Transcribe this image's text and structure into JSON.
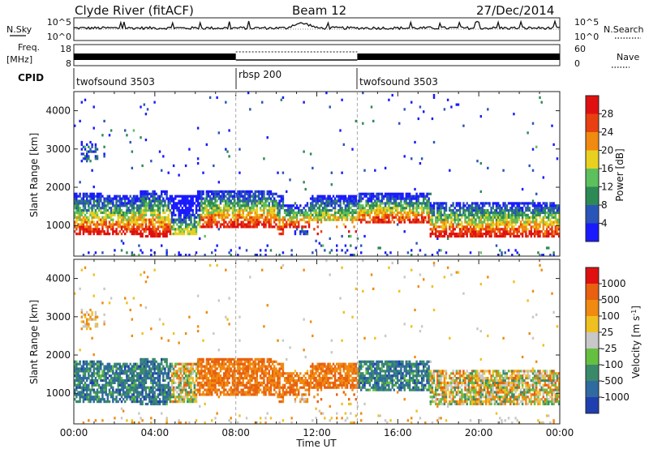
{
  "header": {
    "station": "Clyde River (fitACF)",
    "beam": "Beam 12",
    "date": "27/Dec/2014"
  },
  "nsky_panel": {
    "left_label": "N.Sky",
    "right_label": "N.Search",
    "left_ticks": [
      "10^5",
      "10^0"
    ],
    "right_ticks": [
      "10^5",
      "10^0"
    ]
  },
  "freq_panel": {
    "left_label_1": "Freq.",
    "left_label_2": "[MHz]",
    "right_label": "Nave",
    "left_ticks": [
      "18",
      "8"
    ],
    "right_ticks": [
      "60",
      "0"
    ]
  },
  "cpid_panel": {
    "label": "CPID",
    "segments": [
      {
        "name": "twofsound 3503",
        "start_hour": 0,
        "end_hour": 8
      },
      {
        "name": "rbsp 200",
        "start_hour": 8,
        "end_hour": 14
      },
      {
        "name": "twofsound 3503",
        "start_hour": 14,
        "end_hour": 24
      }
    ]
  },
  "chart_data": [
    {
      "type": "heatmap",
      "name": "power",
      "xlabel": "",
      "ylabel": "Slant Range [km]",
      "xlim": [
        0,
        24
      ],
      "ylim": [
        200,
        4500
      ],
      "yticks": [
        1000,
        2000,
        3000,
        4000
      ],
      "colorbar": {
        "label": "Power [dB]",
        "ticks": [
          "4",
          "8",
          "12",
          "16",
          "20",
          "24",
          "28"
        ],
        "colors": [
          "#1a1aff",
          "#2a55b8",
          "#2d8a55",
          "#5cc05c",
          "#e8d020",
          "#f08a10",
          "#e84010",
          "#e01010"
        ]
      }
    },
    {
      "type": "heatmap",
      "name": "velocity",
      "xlabel": "Time UT",
      "ylabel": "Slant Range [km]",
      "xlim": [
        0,
        24
      ],
      "ylim": [
        200,
        4500
      ],
      "yticks": [
        1000,
        2000,
        3000,
        4000
      ],
      "xticks": [
        "00:00",
        "04:00",
        "08:00",
        "12:00",
        "16:00",
        "20:00",
        "00:00"
      ],
      "colorbar": {
        "label": "Velocity [m s",
        "label_sup": "-1",
        "label_end": "]",
        "ticks": [
          "1000",
          "500",
          "100",
          "25",
          "-25",
          "-100",
          "-500",
          "-1000"
        ],
        "colors": [
          "#1f3fb0",
          "#2f6aa0",
          "#3a8a6a",
          "#66c040",
          "#c8c8c8",
          "#f0c020",
          "#f08a10",
          "#e86010",
          "#e01010"
        ]
      }
    }
  ]
}
